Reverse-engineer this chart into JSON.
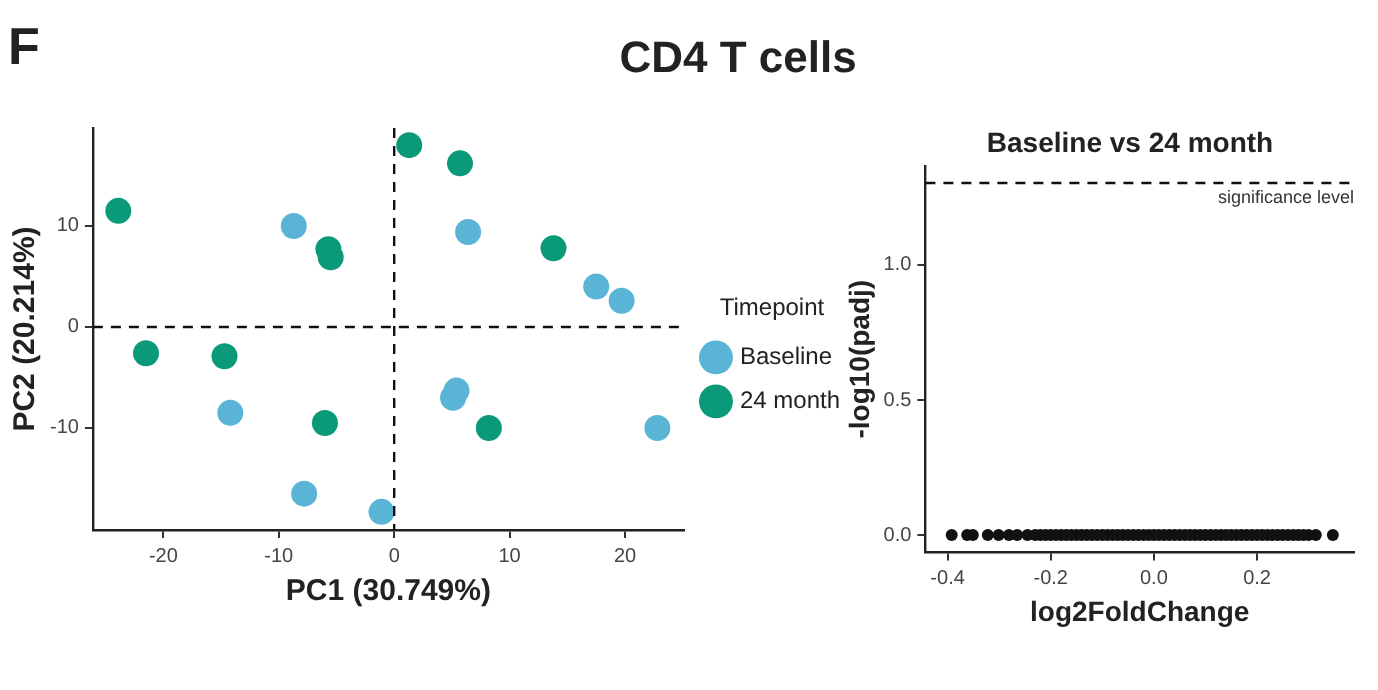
{
  "chart_data": [
    {
      "type": "scatter",
      "title": "CD4 T cells",
      "annotations": [
        "F"
      ],
      "xlabel": "PC1 (30.749%)",
      "ylabel": "PC2 (20.214%)",
      "legend_title": "Timepoint",
      "legend": "right",
      "marker": "circle",
      "grid": false,
      "xlim": [
        -26.1,
        25.1
      ],
      "ylim": [
        -20.1,
        19.7
      ],
      "xticks": [
        -20,
        -10,
        0,
        10,
        20
      ],
      "yticks": [
        -10,
        0,
        10
      ],
      "ref_lines": [
        {
          "axis": "x",
          "value": 0,
          "line_style": "dashed"
        },
        {
          "axis": "y",
          "value": 0,
          "line_style": "dashed"
        }
      ],
      "series": [
        {
          "name": "Baseline",
          "color": "#5ab4d6",
          "x": [
            -8.7,
            6.4,
            17.5,
            19.7,
            -14.2,
            5.4,
            5.1,
            22.8,
            -7.8,
            -1.1
          ],
          "values": [
            10.0,
            9.4,
            4.0,
            2.6,
            -8.5,
            -6.3,
            -7.0,
            -10.0,
            -16.5,
            -18.3
          ]
        },
        {
          "name": "24 month",
          "color": "#0a9a7a",
          "x": [
            1.3,
            5.7,
            -23.9,
            -5.7,
            -5.5,
            13.8,
            -21.5,
            -14.7,
            -6.0,
            8.2
          ],
          "values": [
            18.0,
            16.2,
            11.5,
            7.7,
            6.9,
            7.8,
            -2.6,
            -2.9,
            -9.5,
            -10.0
          ]
        }
      ]
    },
    {
      "type": "scatter",
      "title": "Baseline vs 24 month",
      "xlabel": "log2FoldChange",
      "ylabel": "-log10(padj)",
      "marker": "circle",
      "grid": false,
      "xlim": [
        -0.443,
        0.388
      ],
      "ylim": [
        -0.064,
        1.366
      ],
      "xticks": [
        {
          "value": -0.4,
          "label": "-0.4"
        },
        {
          "value": -0.2,
          "label": "-0.2"
        },
        {
          "value": 0,
          "label": "0.0"
        },
        {
          "value": 0.2,
          "label": "0.2"
        }
      ],
      "yticks": [
        {
          "value": 0,
          "label": "0.0"
        },
        {
          "value": 0.5,
          "label": "0.5"
        },
        {
          "value": 1,
          "label": "1.0"
        }
      ],
      "ref_lines": [
        {
          "axis": "y",
          "value": 1.303,
          "label": "significance level",
          "line_style": "dashed"
        }
      ],
      "series": [
        {
          "color": "#111111",
          "x": [
            -0.392,
            -0.362,
            -0.351,
            -0.322,
            -0.301,
            -0.281,
            -0.265,
            -0.245,
            -0.23,
            -0.22,
            -0.21,
            -0.2,
            -0.19,
            -0.18,
            -0.17,
            -0.16,
            -0.15,
            -0.14,
            -0.13,
            -0.12,
            -0.11,
            -0.1,
            -0.09,
            -0.08,
            -0.07,
            -0.06,
            -0.05,
            -0.04,
            -0.03,
            -0.02,
            -0.01,
            0,
            0.01,
            0.02,
            0.03,
            0.04,
            0.05,
            0.06,
            0.07,
            0.08,
            0.09,
            0.1,
            0.11,
            0.12,
            0.13,
            0.14,
            0.15,
            0.16,
            0.17,
            0.18,
            0.19,
            0.2,
            0.21,
            0.22,
            0.23,
            0.24,
            0.25,
            0.26,
            0.27,
            0.28,
            0.29,
            0.3,
            0.314,
            0.347
          ],
          "values": [
            0,
            0,
            0,
            0,
            0,
            0,
            0,
            0,
            0,
            0,
            0,
            0,
            0,
            0,
            0,
            0,
            0,
            0,
            0,
            0,
            0,
            0,
            0,
            0,
            0,
            0,
            0,
            0,
            0,
            0,
            0,
            0,
            0,
            0,
            0,
            0,
            0,
            0,
            0,
            0,
            0,
            0,
            0,
            0,
            0,
            0,
            0,
            0,
            0,
            0,
            0,
            0,
            0,
            0,
            0,
            0,
            0,
            0,
            0,
            0,
            0,
            0,
            0,
            0
          ]
        }
      ]
    }
  ]
}
